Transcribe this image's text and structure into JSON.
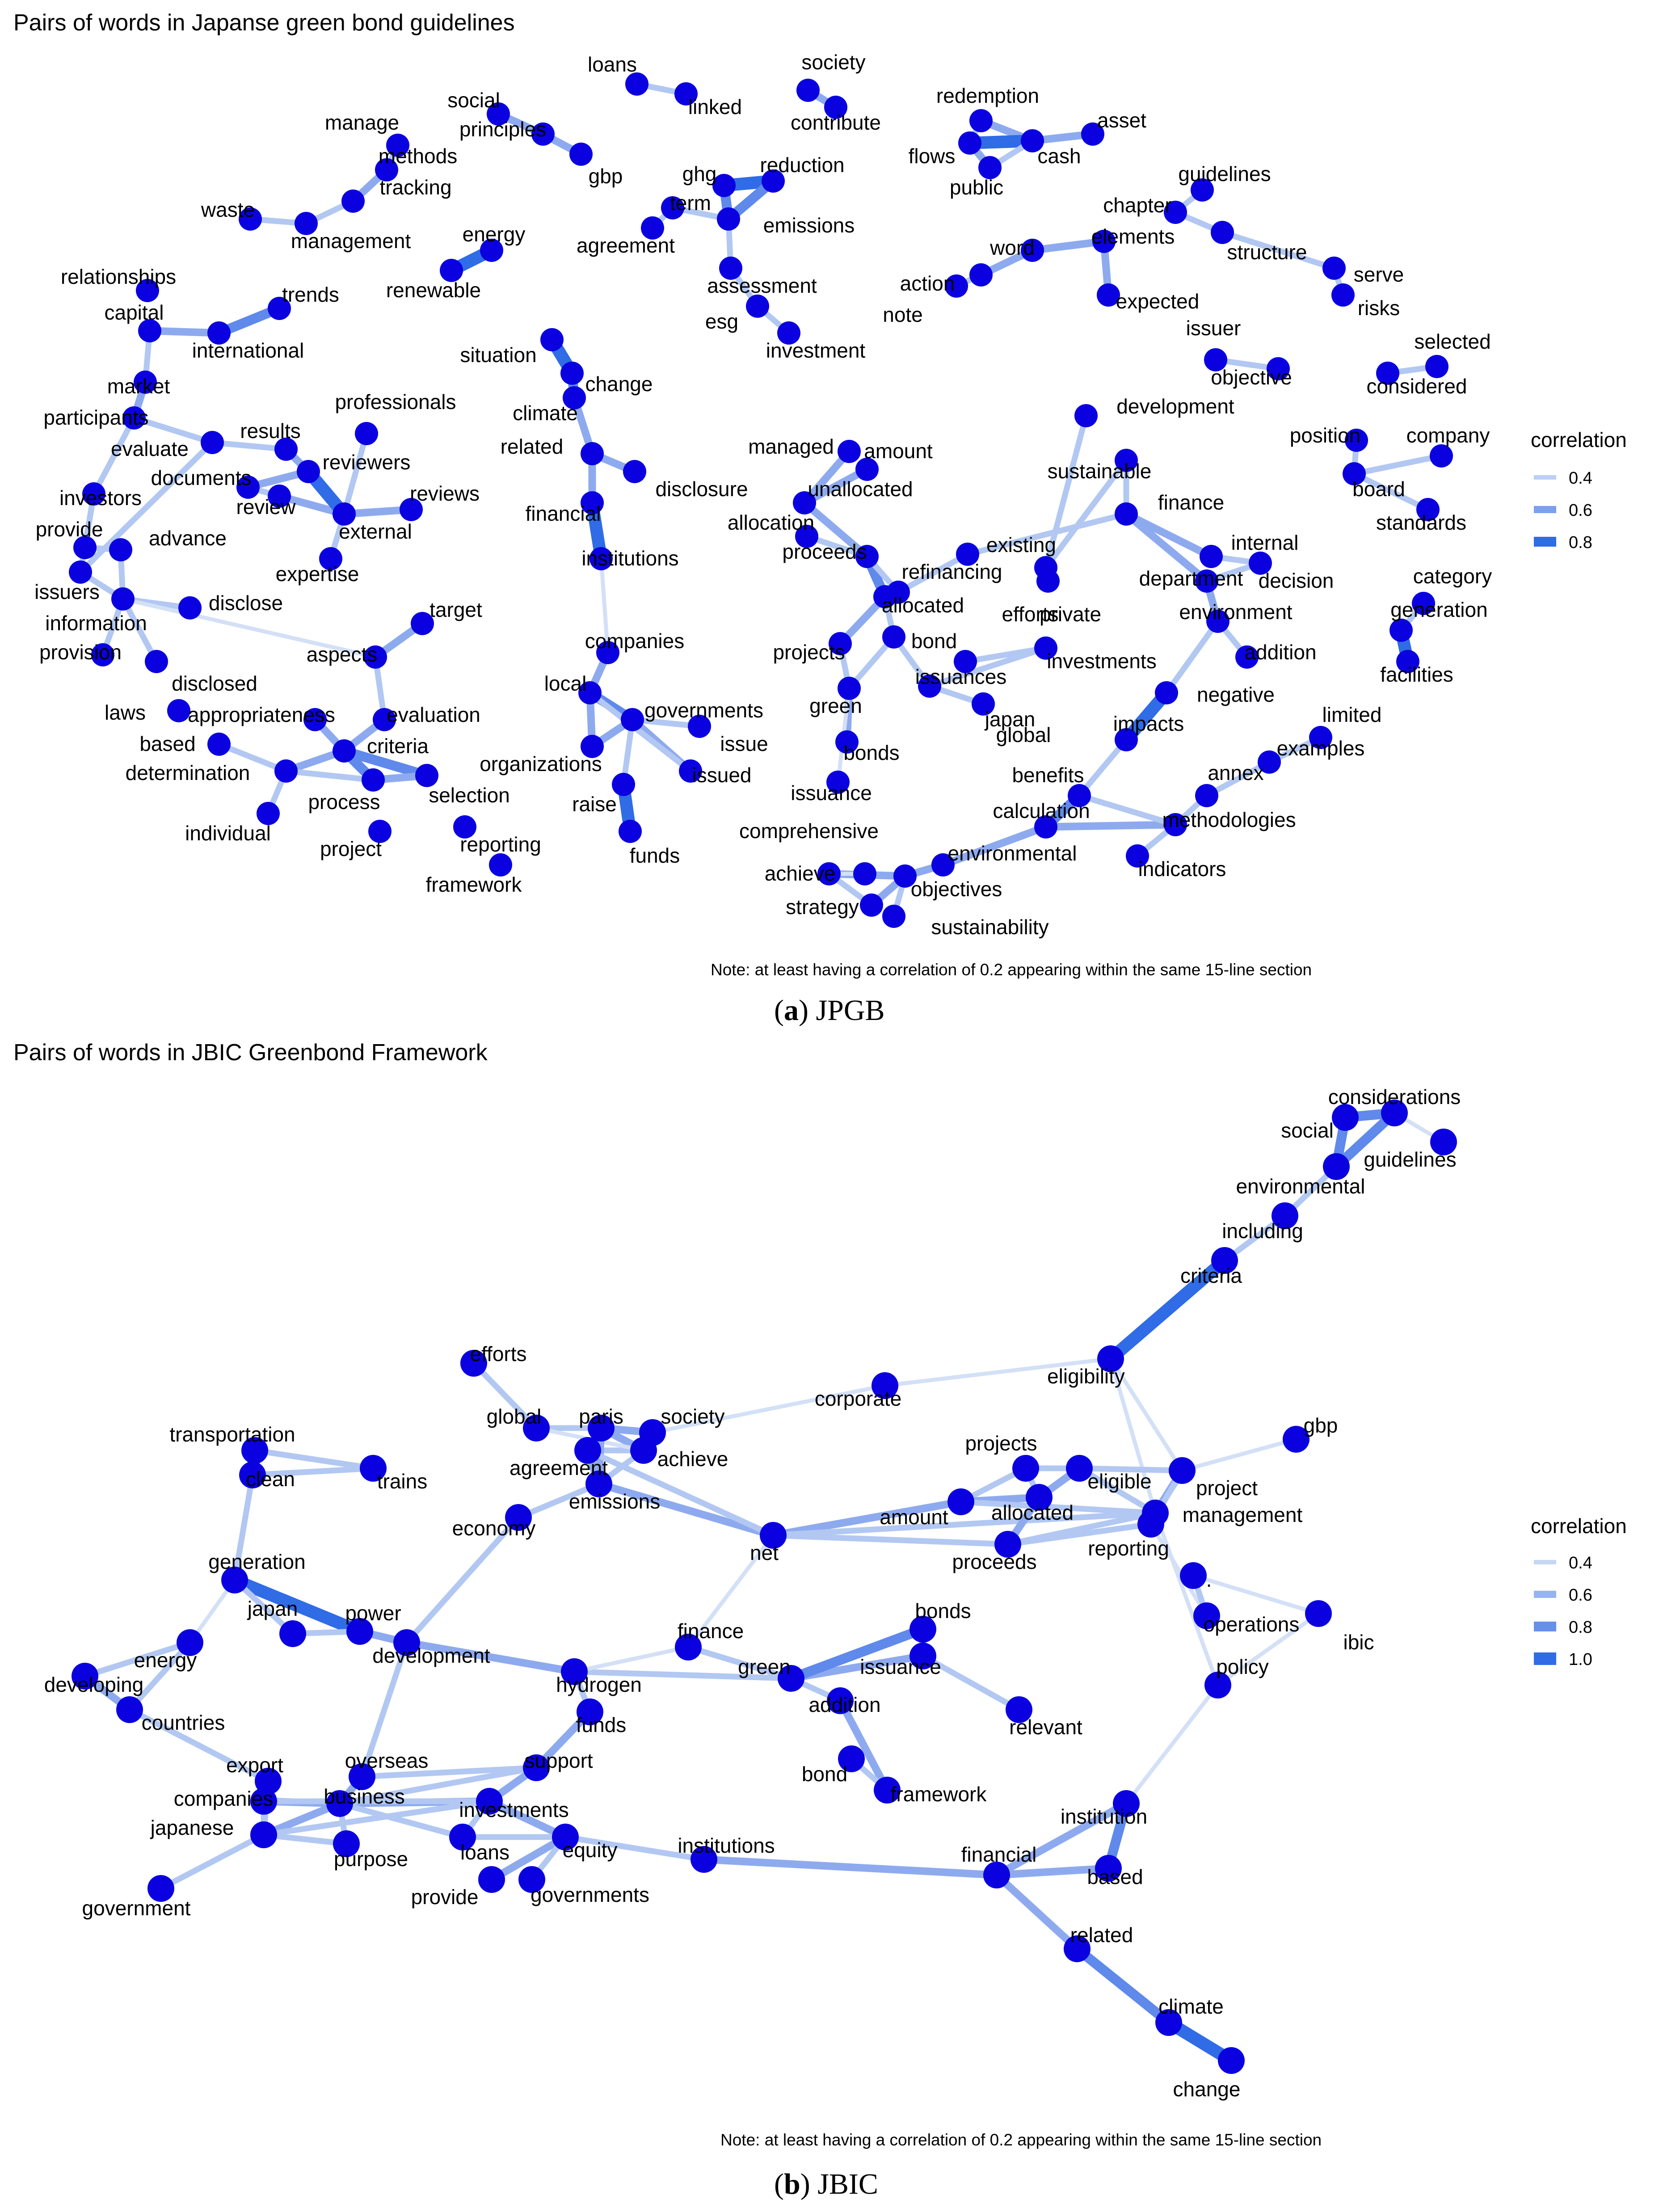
{
  "panels": [
    {
      "title": "Pairs of words in Japanse green bond guidelines",
      "note": "Note: at least having a correlation of 0.2 appearing within the same 15-line section",
      "caption_letter": "a",
      "caption_text": "JPGB",
      "legend": {
        "title": "correlation",
        "entries": [
          {
            "label": "0.4",
            "color": "#bcd0f4"
          },
          {
            "label": "0.6",
            "color": "#7d9ff0"
          },
          {
            "label": "0.8",
            "color": "#2f6ce6"
          }
        ]
      }
    },
    {
      "title": "Pairs of words in JBIC Greenbond Framework",
      "note": "Note: at least having a correlation of 0.2 appearing within the same 15-line section",
      "caption_letter": "b",
      "caption_text": "JBIC",
      "legend": {
        "title": "correlation",
        "entries": [
          {
            "label": "0.4",
            "color": "#c6d7f4"
          },
          {
            "label": "0.6",
            "color": "#96b4f0"
          },
          {
            "label": "0.8",
            "color": "#6690ea"
          },
          {
            "label": "1.0",
            "color": "#2f6ce6"
          }
        ]
      }
    }
  ],
  "chart_data": [
    {
      "type": "network",
      "nodes": [
        "loans",
        "linked",
        "society",
        "contribute",
        "redemption",
        "flows",
        "cash",
        "asset",
        "public",
        "social",
        "principles",
        "gbp",
        "manage",
        "methods",
        "tracking",
        "waste",
        "management",
        "ghg",
        "reduction",
        "term",
        "emissions",
        "agreement",
        "assessment",
        "esg",
        "investment",
        "energy",
        "renewable",
        "guidelines",
        "chapter",
        "elements",
        "word",
        "action",
        "note",
        "expected",
        "structure",
        "serve",
        "risks",
        "relationships",
        "capital",
        "trends",
        "international",
        "market",
        "participants",
        "evaluate",
        "results",
        "professionals",
        "reviewers",
        "documents",
        "review",
        "reviews",
        "external",
        "investors",
        "advance",
        "provide",
        "issuers",
        "information",
        "disclose",
        "provision",
        "expertise",
        "target",
        "aspects",
        "disclosed",
        "laws",
        "appropriateness",
        "evaluation",
        "based",
        "criteria",
        "determination",
        "process",
        "selection",
        "individual",
        "project",
        "reporting",
        "framework",
        "situation",
        "change",
        "climate",
        "related",
        "disclosure",
        "financial",
        "institutions",
        "companies",
        "local",
        "governments",
        "issue",
        "organizations",
        "issued",
        "raise",
        "funds",
        "managed",
        "amount",
        "unallocated",
        "allocation",
        "proceeds",
        "existing",
        "refinancing",
        "allocated",
        "projects",
        "bond",
        "issuances",
        "green",
        "japan",
        "bonds",
        "issuance",
        "private",
        "investments",
        "global",
        "efforts",
        "development",
        "sustainable",
        "finance",
        "internal",
        "department",
        "decision",
        "environment",
        "addition",
        "issuer",
        "objective",
        "selected",
        "considered",
        "position",
        "company",
        "board",
        "standards",
        "category",
        "generation",
        "facilities",
        "negative",
        "impacts",
        "limited",
        "examples",
        "annex",
        "benefits",
        "calculation",
        "methodologies",
        "indicators",
        "comprehensive",
        "environmental",
        "achieve",
        "objectives",
        "strategy",
        "sustainability"
      ]
    },
    {
      "type": "network",
      "nodes": [
        "considerations",
        "social",
        "guidelines",
        "environmental",
        "including",
        "criteria",
        "eligibility",
        "corporate",
        "gbp",
        "efforts",
        "global",
        "paris",
        "society",
        "agreement",
        "achieve",
        "emissions",
        "economy",
        "net",
        "projects",
        "eligible",
        "project",
        "amount",
        "allocated",
        "management",
        "proceeds",
        "reporting",
        ".",
        "operations",
        "ibic",
        "policy",
        "transportation",
        "clean",
        "trains",
        "generation",
        "japan",
        "power",
        "energy",
        "development",
        "developing",
        "countries",
        "finance",
        "hydrogen",
        "bonds",
        "green",
        "issuance",
        "addition",
        "relevant",
        "funds",
        "support",
        "overseas",
        "export",
        "companies",
        "business",
        "investments",
        "japanese",
        "loans",
        "equity",
        "purpose",
        "institutions",
        "provide",
        "governments",
        "government",
        "bond",
        "framework",
        "institution",
        "financial",
        "based",
        "related",
        "climate",
        "change"
      ]
    }
  ]
}
